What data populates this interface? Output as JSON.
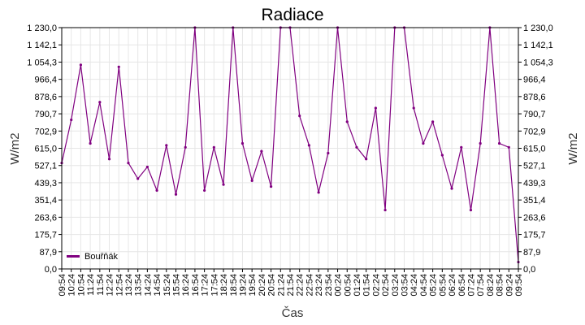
{
  "chart_data": {
    "type": "line",
    "title": "Radiace",
    "xlabel": "Čas",
    "ylabel_left": "W/m2",
    "ylabel_right": "W/m2",
    "ylim": [
      0,
      1230
    ],
    "y_ticks": [
      "0,0",
      "87,9",
      "175,7",
      "263,6",
      "351,4",
      "439,3",
      "527,1",
      "615,0",
      "702,9",
      "790,7",
      "878,6",
      "966,4",
      "1 054,3",
      "1 142,1",
      "1 230,0"
    ],
    "x_ticks": [
      "09:54",
      "10:24",
      "10:54",
      "11:24",
      "11:54",
      "12:24",
      "12:54",
      "13:24",
      "13:54",
      "14:24",
      "14:54",
      "15:24",
      "15:54",
      "16:24",
      "16:54",
      "17:24",
      "17:54",
      "18:24",
      "18:54",
      "19:24",
      "19:54",
      "20:24",
      "20:54",
      "21:24",
      "21:54",
      "22:24",
      "22:54",
      "23:24",
      "23:54",
      "00:24",
      "00:54",
      "01:24",
      "01:54",
      "02:24",
      "02:54",
      "03:24",
      "03:54",
      "04:24",
      "04:54",
      "05:24",
      "05:54",
      "06:24",
      "06:54",
      "07:24",
      "07:54",
      "08:24",
      "08:54",
      "09:24",
      "09:54"
    ],
    "grid": true,
    "legend_position": "bottom-left",
    "series": [
      {
        "name": "Bouřňák",
        "color": "#800080",
        "x": [
          "09:54",
          "10:24",
          "10:54",
          "11:24",
          "11:54",
          "12:24",
          "12:54",
          "13:24",
          "13:54",
          "14:24",
          "14:54",
          "15:24",
          "15:54",
          "16:24",
          "16:54",
          "17:24",
          "17:54",
          "18:24",
          "18:54",
          "19:24",
          "19:54",
          "20:24",
          "20:54",
          "21:24",
          "21:54",
          "22:24",
          "22:54",
          "23:24",
          "23:54",
          "00:24",
          "00:54",
          "01:24",
          "01:54",
          "02:24",
          "02:54",
          "03:24",
          "03:54",
          "04:24",
          "04:54",
          "05:24",
          "05:54",
          "06:24",
          "06:54",
          "07:24",
          "07:54",
          "08:24",
          "08:54",
          "09:24",
          "09:54"
        ],
        "values": [
          540,
          760,
          1040,
          640,
          850,
          560,
          1030,
          540,
          460,
          520,
          400,
          630,
          380,
          620,
          1230,
          400,
          620,
          430,
          1230,
          640,
          450,
          600,
          420,
          1230,
          1230,
          780,
          630,
          390,
          590,
          1230,
          750,
          620,
          560,
          820,
          300,
          1230,
          1230,
          820,
          640,
          750,
          580,
          410,
          620,
          300,
          640,
          1230,
          640,
          620,
          35
        ]
      }
    ]
  }
}
